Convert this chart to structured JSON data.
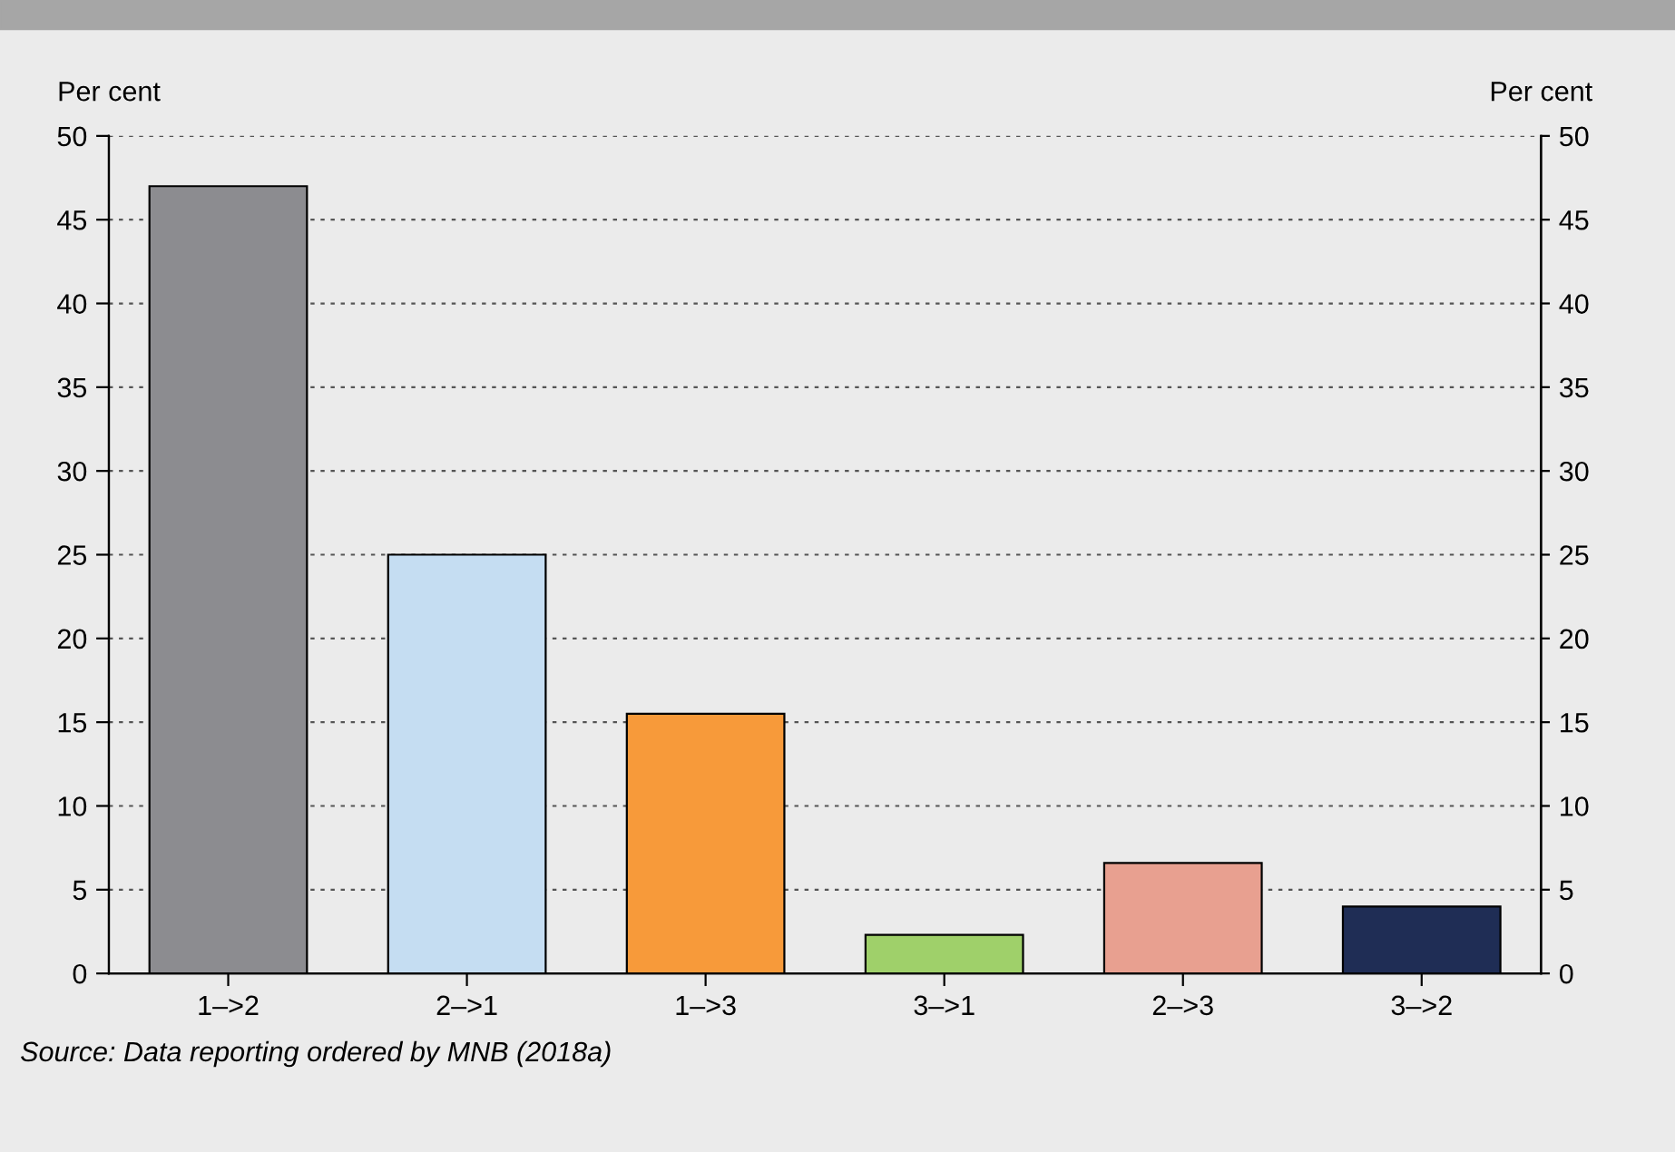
{
  "chart_data": {
    "type": "bar",
    "categories": [
      "1–>2",
      "2–>1",
      "1–>3",
      "3–>1",
      "2–>3",
      "3–>2"
    ],
    "values": [
      47,
      25,
      15.5,
      2.3,
      6.6,
      4
    ],
    "colors": [
      "#8c8c90",
      "#c5ddf2",
      "#f79a3a",
      "#9fd06a",
      "#e8a090",
      "#1f2d55"
    ],
    "ylabel": "Per cent",
    "y2label": "Per cent",
    "ylim": [
      0,
      50
    ],
    "yticks": [
      0,
      5,
      10,
      15,
      20,
      25,
      30,
      35,
      40,
      45,
      50
    ],
    "y2lim": [
      0,
      50
    ],
    "y2ticks": [
      0,
      5,
      10,
      15,
      20,
      25,
      30,
      35,
      40,
      45,
      50
    ],
    "grid": "y",
    "line_style": "dotted",
    "annotations": [
      "Source: Data reporting ordered by MNB (2018a)"
    ]
  }
}
